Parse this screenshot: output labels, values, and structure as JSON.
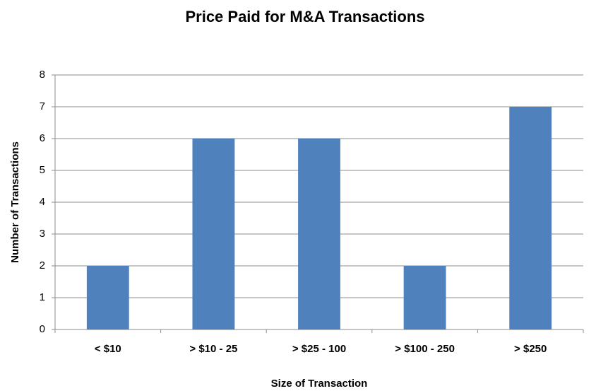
{
  "chart_data": {
    "type": "bar",
    "title": "Price Paid for M&A Transactions",
    "x_label": "Size of Transaction",
    "y_label": "Number of Transactions",
    "categories": [
      "< $10",
      "> $10 - 25",
      "> $25 - 100",
      "> $100 - 250",
      "> $250"
    ],
    "values": [
      2,
      6,
      6,
      2,
      7
    ],
    "color": "#4f81bd",
    "ylim": [
      0,
      8
    ],
    "yticks": [
      0,
      1,
      2,
      3,
      4,
      5,
      6,
      7,
      8
    ],
    "grid": true
  }
}
